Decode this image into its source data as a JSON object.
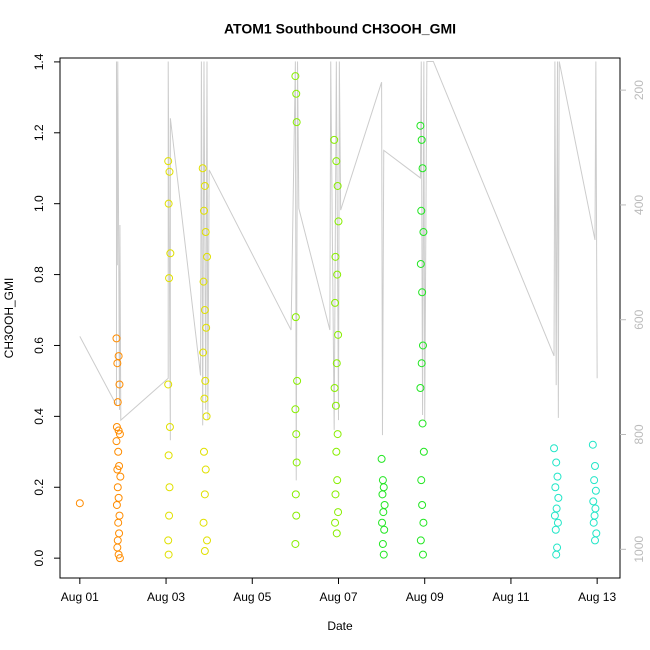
{
  "chart_data": {
    "type": "scatter",
    "title": "ATOM1 Southbound CH3OOH_GMI",
    "x_label": "Date",
    "y_label": "CH3OOH_GMI",
    "xlim": [
      0.54,
      13.53
    ],
    "xticks": [
      {
        "value": 1,
        "label": "Aug 01"
      },
      {
        "value": 3,
        "label": "Aug 03"
      },
      {
        "value": 5,
        "label": "Aug 05"
      },
      {
        "value": 7,
        "label": "Aug 07"
      },
      {
        "value": 9,
        "label": "Aug 09"
      },
      {
        "value": 11,
        "label": "Aug 11"
      },
      {
        "value": 13,
        "label": "Aug 13"
      }
    ],
    "ylim": [
      -0.056,
      1.411
    ],
    "yticks": [
      {
        "value": 0,
        "label": "0.0"
      },
      0.2,
      0.4,
      0.6,
      0.8,
      {
        "value": 1,
        "label": "1.0"
      },
      1.2,
      1.4
    ],
    "y2lim": [
      1050,
      144
    ],
    "y2ticks": [
      200,
      400,
      600,
      800,
      1000
    ],
    "series": [
      {
        "color": "#ff8c00",
        "x": [
          1.0,
          1.85,
          1.9,
          1.87,
          1.92,
          1.88,
          1.86,
          1.9,
          1.93,
          1.85,
          1.89,
          1.91,
          1.87,
          1.94,
          1.88,
          1.9,
          1.86,
          1.92,
          1.89,
          1.91,
          1.88,
          1.87,
          1.9,
          1.93
        ],
        "values": [
          0.155,
          0.62,
          0.57,
          0.55,
          0.49,
          0.44,
          0.37,
          0.36,
          0.35,
          0.33,
          0.3,
          0.26,
          0.25,
          0.23,
          0.2,
          0.17,
          0.15,
          0.12,
          0.1,
          0.07,
          0.05,
          0.03,
          0.01,
          0.0
        ]
      },
      {
        "color": "#e0e000",
        "x": [
          3.05,
          3.08,
          3.06,
          3.1,
          3.07,
          3.05,
          3.09,
          3.06,
          3.08,
          3.07,
          3.05,
          3.06,
          3.85,
          3.9,
          3.88,
          3.92,
          3.95,
          3.87,
          3.9,
          3.93,
          3.86,
          3.91,
          3.89,
          3.94,
          3.88,
          3.92,
          3.9,
          3.87,
          3.95,
          3.9
        ],
        "values": [
          1.12,
          1.09,
          1.0,
          0.86,
          0.79,
          0.49,
          0.37,
          0.29,
          0.2,
          0.12,
          0.05,
          0.01,
          1.1,
          1.05,
          0.98,
          0.92,
          0.85,
          0.78,
          0.7,
          0.65,
          0.58,
          0.5,
          0.45,
          0.4,
          0.3,
          0.25,
          0.18,
          0.1,
          0.05,
          0.02
        ]
      },
      {
        "color": "#88ee00",
        "x": [
          6.0,
          6.02,
          6.03,
          6.01,
          6.04,
          6.0,
          6.02,
          6.03,
          6.01,
          6.02,
          6.0,
          6.9,
          6.95,
          6.98,
          7.0,
          6.93,
          6.97,
          6.92,
          6.99,
          6.96,
          6.91,
          6.94,
          6.98,
          6.95,
          6.97,
          6.93,
          6.99,
          6.92,
          6.96
        ],
        "values": [
          1.36,
          1.31,
          1.23,
          0.68,
          0.5,
          0.42,
          0.35,
          0.27,
          0.18,
          0.12,
          0.04,
          1.18,
          1.12,
          1.05,
          0.95,
          0.85,
          0.8,
          0.72,
          0.63,
          0.55,
          0.48,
          0.43,
          0.35,
          0.3,
          0.22,
          0.18,
          0.13,
          0.1,
          0.07
        ]
      },
      {
        "color": "#22e622",
        "x": [
          8.0,
          8.03,
          8.05,
          8.02,
          8.07,
          8.04,
          8.01,
          8.06,
          8.03,
          8.05,
          8.9,
          8.93,
          8.95,
          8.92,
          8.97,
          8.91,
          8.94,
          8.96,
          8.93,
          8.9,
          8.95,
          8.98,
          8.92,
          8.94,
          8.97,
          8.91,
          8.96
        ],
        "values": [
          0.28,
          0.22,
          0.2,
          0.18,
          0.15,
          0.13,
          0.1,
          0.08,
          0.04,
          0.01,
          1.22,
          1.18,
          1.1,
          0.98,
          0.92,
          0.83,
          0.75,
          0.6,
          0.55,
          0.48,
          0.38,
          0.3,
          0.22,
          0.15,
          0.1,
          0.05,
          0.01
        ]
      },
      {
        "color": "#22e6c8",
        "x": [
          12.0,
          12.05,
          12.08,
          12.03,
          12.1,
          12.06,
          12.02,
          12.09,
          12.04,
          12.07,
          12.05,
          12.9,
          12.95,
          12.93,
          12.97,
          12.91,
          12.96,
          12.94,
          12.92,
          12.98,
          12.95
        ],
        "values": [
          0.31,
          0.27,
          0.23,
          0.2,
          0.17,
          0.14,
          0.12,
          0.1,
          0.08,
          0.03,
          0.01,
          0.32,
          0.26,
          0.22,
          0.19,
          0.16,
          0.14,
          0.12,
          0.1,
          0.07,
          0.05
        ]
      },
      {
        "color": "#cccccc",
        "axis": "y2",
        "x": [
          1.0,
          1.85,
          1.85,
          1.87,
          1.88,
          1.92,
          1.93,
          1.95,
          3.05,
          3.05,
          3.1,
          3.1,
          3.8,
          3.82,
          3.85,
          3.88,
          3.92,
          3.95,
          3.97,
          4.0,
          5.9,
          6.0,
          6.02,
          6.05,
          6.08,
          6.8,
          6.82,
          6.9,
          6.95,
          7.0,
          7.02,
          7.05,
          8.0,
          8.02,
          8.05,
          8.9,
          8.92,
          8.95,
          8.98,
          9.0,
          9.05,
          9.2,
          12.0,
          12.02,
          12.05,
          12.08,
          12.1,
          12.12,
          12.95,
          12.97,
          13.0
        ],
        "values": [
          629,
          749,
          150,
          505,
          150,
          757,
          435,
          775,
          702,
          150,
          810,
          249,
          697,
          150,
          784,
          150,
          757,
          150,
          775,
          339,
          618,
          150,
          880,
          150,
          406,
          618,
          150,
          792,
          150,
          775,
          150,
          409,
          186,
          801,
          305,
          353,
          150,
          766,
          150,
          775,
          150,
          150,
          663,
          150,
          714,
          150,
          771,
          150,
          461,
          150,
          702
        ]
      }
    ]
  }
}
